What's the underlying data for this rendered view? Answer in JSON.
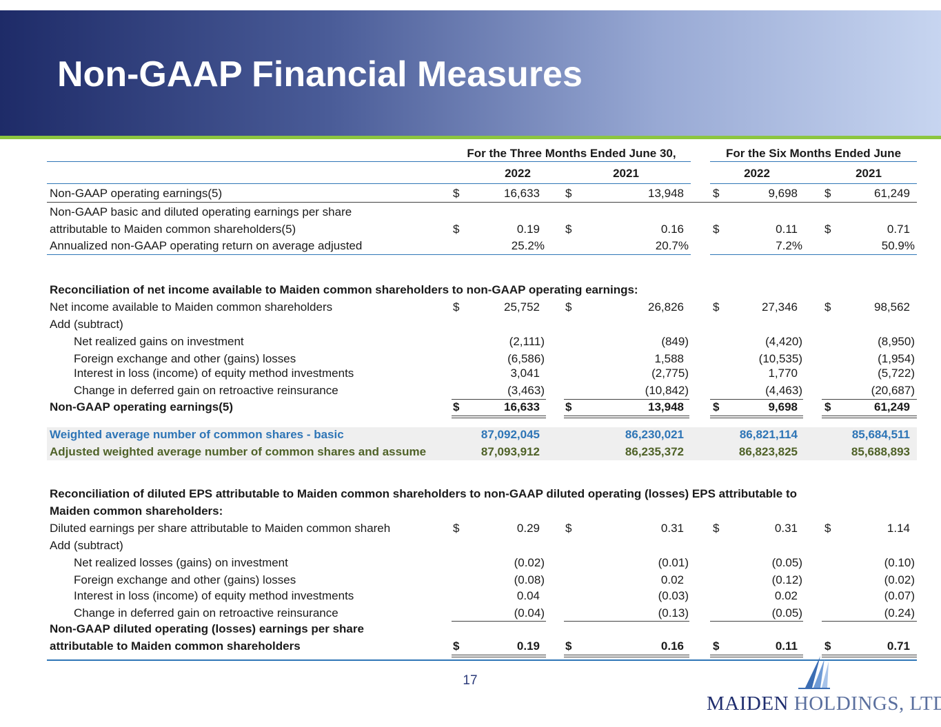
{
  "header": {
    "title": "Non-GAAP Financial Measures"
  },
  "table": {
    "periods": [
      "For the Three Months Ended June 30,",
      "For the Six Months Ended June"
    ],
    "years": [
      "2022",
      "2021",
      "2022",
      "2021"
    ],
    "rows": [
      {
        "label": "Non-GAAP operating earnings(5)",
        "cells": [
          "$",
          "16,633",
          "$",
          "13,948",
          "$",
          "9,698",
          "$",
          "61,249"
        ]
      },
      {
        "label": [
          "Non-GAAP basic and diluted operating  earnings per share",
          "attributable to Maiden common shareholders(5)"
        ],
        "cells": [
          "$",
          "0.19",
          "$",
          "0.16",
          "$",
          "0.11",
          "$",
          "0.71"
        ]
      },
      {
        "label": "Annualized non-GAAP operating return on average adjusted",
        "cells": [
          null,
          "25.2%",
          null,
          "20.7%",
          null,
          "7.2%",
          null,
          "50.9%"
        ]
      },
      {
        "label": "Reconciliation of net income available to Maiden common shareholders to non-GAAP operating earnings:"
      },
      {
        "label": "Net income available to Maiden common shareholders",
        "cells": [
          "$",
          "25,752",
          "$",
          "26,826",
          "$",
          "27,346",
          "$",
          "98,562"
        ]
      },
      {
        "label": "Add (subtract)"
      },
      {
        "label": "Net realized gains on investment",
        "cells": [
          null,
          "(2,111)",
          null,
          "(849)",
          null,
          "(4,420)",
          null,
          "(8,950)"
        ]
      },
      {
        "label": "Foreign exchange and other (gains) losses",
        "cells": [
          null,
          "(6,586)",
          null,
          "1,588",
          null,
          "(10,535)",
          null,
          "(1,954)"
        ]
      },
      {
        "label": "Interest in loss (income) of equity method investments",
        "cells": [
          null,
          "3,041",
          null,
          "(2,775)",
          null,
          "1,770",
          null,
          "(5,722)"
        ]
      },
      {
        "label": "Change in deferred gain on retroactive reinsurance",
        "cells": [
          null,
          "(3,463)",
          null,
          "(10,842)",
          null,
          "(4,463)",
          null,
          "(20,687)"
        ]
      },
      {
        "label": "Non-GAAP operating earnings(5)",
        "cells": [
          "$",
          "16,633",
          "$",
          "13,948",
          "$",
          "9,698",
          "$",
          "61,249"
        ]
      },
      {
        "label": "Weighted average number of common shares - basic",
        "cells": [
          null,
          "87,092,045",
          null,
          "86,230,021",
          null,
          "86,821,114",
          null,
          "85,684,511"
        ]
      },
      {
        "label": "Adjusted weighted average number of common shares and assume",
        "cells": [
          null,
          "87,093,912",
          null,
          "86,235,372",
          null,
          "86,823,825",
          null,
          "85,688,893"
        ]
      },
      {
        "label": [
          "Reconciliation of diluted EPS attributable to Maiden common shareholders to non-GAAP diluted operating (losses) EPS attributable to",
          "Maiden common shareholders:"
        ]
      },
      {
        "label": "Diluted earnings per share attributable to Maiden common shareh",
        "cells": [
          "$",
          "0.29",
          "$",
          "0.31",
          "$",
          "0.31",
          "$",
          "1.14"
        ]
      },
      {
        "label": "Add (subtract)"
      },
      {
        "label": "Net realized losses (gains) on investment",
        "cells": [
          null,
          "(0.02)",
          null,
          "(0.01)",
          null,
          "(0.05)",
          null,
          "(0.10)"
        ]
      },
      {
        "label": "Foreign exchange and other (gains) losses",
        "cells": [
          null,
          "(0.08)",
          null,
          "0.02",
          null,
          "(0.12)",
          null,
          "(0.02)"
        ]
      },
      {
        "label": "Interest in loss (income) of equity method investments",
        "cells": [
          null,
          "0.04",
          null,
          "(0.03)",
          null,
          "0.02",
          null,
          "(0.07)"
        ]
      },
      {
        "label": "Change in deferred gain on retroactive reinsurance",
        "cells": [
          null,
          "(0.04)",
          null,
          "(0.13)",
          null,
          "(0.05)",
          null,
          "(0.24)"
        ]
      },
      {
        "label": [
          "Non-GAAP diluted operating (losses) earnings per share",
          "attributable to Maiden common shareholders"
        ],
        "cells": [
          "$",
          "0.19",
          "$",
          "0.16",
          "$",
          "0.11",
          "$",
          "0.71"
        ]
      }
    ]
  },
  "footer": {
    "page_number": "17",
    "logo_name": "MAIDEN",
    "logo_suffix": "HOLDINGS, LTD."
  }
}
